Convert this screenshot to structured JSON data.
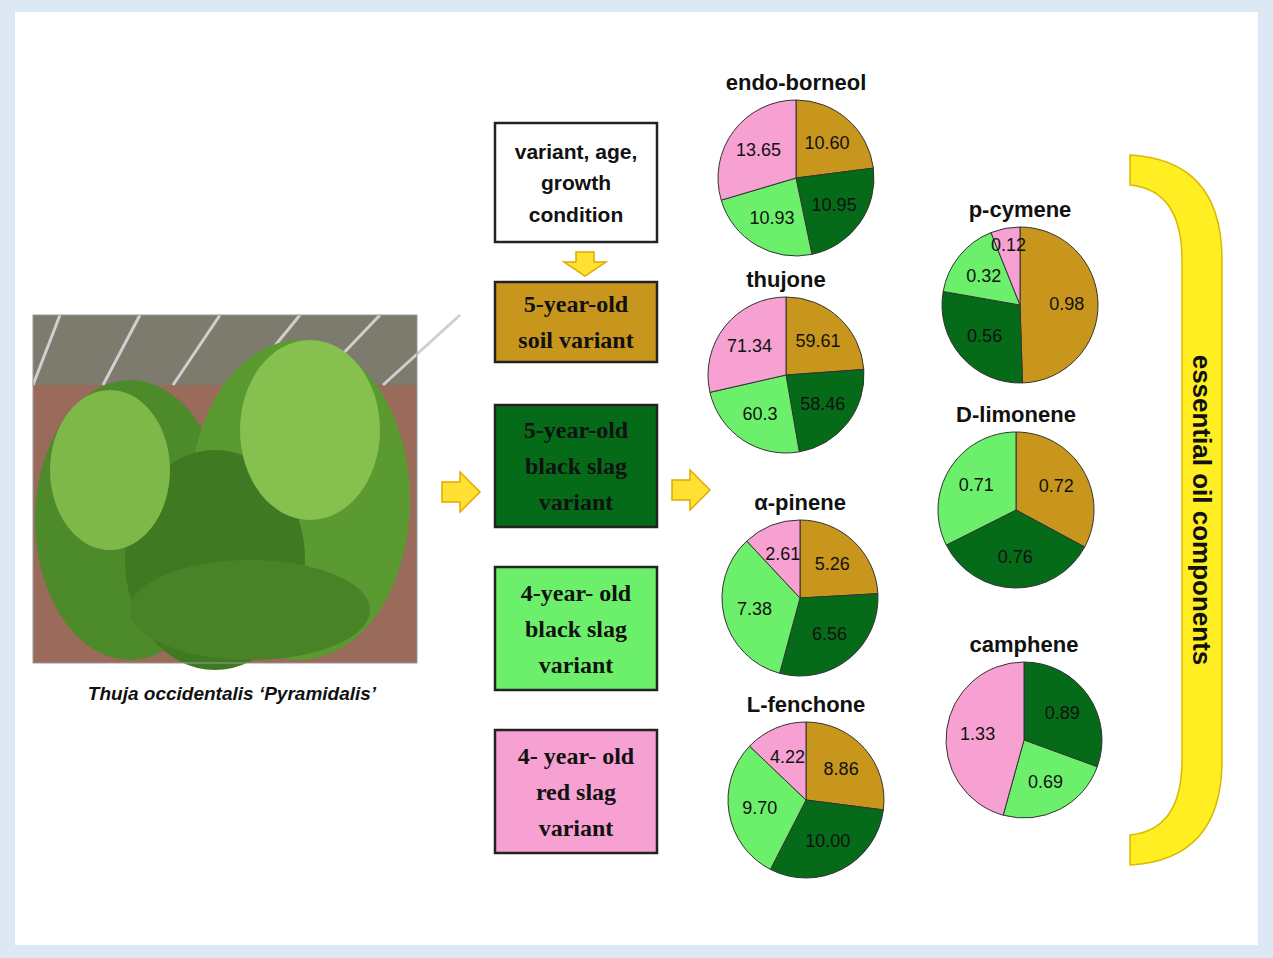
{
  "header_box": "variant, age, growth condition",
  "photo_caption": "Thuja occidentalis ‘Pyramidalis’",
  "side_label": "essential oil components",
  "variants": [
    {
      "name": "5-year-old soil variant",
      "color": "#c8961c"
    },
    {
      "name": "5-year-old black slag variant",
      "color": "#056b18"
    },
    {
      "name": "4-year- old black slag variant",
      "color": "#6cf06c"
    },
    {
      "name": "4- year- old red slag variant",
      "color": "#f7a0d2"
    }
  ],
  "chart_data": [
    {
      "type": "pie",
      "title": "endo-borneol",
      "categories": [
        "5-year-old soil variant",
        "5-year-old black slag variant",
        "4-year- old black slag variant",
        "4- year- old red slag variant"
      ],
      "values": [
        10.6,
        10.95,
        10.93,
        13.65
      ],
      "value_labels": [
        "10.60",
        "10.95",
        "10.93",
        "13.65"
      ],
      "colors": [
        "#c8961c",
        "#056b18",
        "#6cf06c",
        "#f7a0d2"
      ],
      "data_labels": true
    },
    {
      "type": "pie",
      "title": "thujone",
      "categories": [
        "5-year-old soil variant",
        "5-year-old black slag variant",
        "4-year- old black slag variant",
        "4- year- old red slag variant"
      ],
      "values": [
        59.61,
        58.46,
        60.3,
        71.34
      ],
      "value_labels": [
        "59.61",
        "58.46",
        "60.3",
        "71.34"
      ],
      "colors": [
        "#c8961c",
        "#056b18",
        "#6cf06c",
        "#f7a0d2"
      ],
      "data_labels": true
    },
    {
      "type": "pie",
      "title": "α-pinene",
      "categories": [
        "5-year-old soil variant",
        "5-year-old black slag variant",
        "4-year- old black slag variant",
        "4- year- old red slag variant"
      ],
      "values": [
        5.26,
        6.56,
        7.38,
        2.61
      ],
      "value_labels": [
        "5.26",
        "6.56",
        "7.38",
        "2.61"
      ],
      "colors": [
        "#c8961c",
        "#056b18",
        "#6cf06c",
        "#f7a0d2"
      ],
      "data_labels": true
    },
    {
      "type": "pie",
      "title": "L-fenchone",
      "categories": [
        "5-year-old soil variant",
        "5-year-old black slag variant",
        "4-year- old black slag variant",
        "4- year- old red slag variant"
      ],
      "values": [
        8.86,
        10.0,
        9.7,
        4.22
      ],
      "value_labels": [
        "8.86",
        "10.00",
        "9.70",
        "4.22"
      ],
      "colors": [
        "#c8961c",
        "#056b18",
        "#6cf06c",
        "#f7a0d2"
      ],
      "data_labels": true
    },
    {
      "type": "pie",
      "title": "p-cymene",
      "categories": [
        "5-year-old soil variant",
        "5-year-old black slag variant",
        "4-year- old black slag variant",
        "4- year- old red slag variant"
      ],
      "values": [
        0.98,
        0.56,
        0.32,
        0.12
      ],
      "value_labels": [
        "0.98",
        "0.56",
        "0.32",
        "0.12"
      ],
      "colors": [
        "#c8961c",
        "#056b18",
        "#6cf06c",
        "#f7a0d2"
      ],
      "data_labels": true
    },
    {
      "type": "pie",
      "title": "D-limonene",
      "categories": [
        "5-year-old soil variant",
        "5-year-old black slag variant",
        "4-year- old black slag variant"
      ],
      "values": [
        0.72,
        0.76,
        0.71
      ],
      "value_labels": [
        "0.72",
        "0.76",
        "0.71"
      ],
      "colors": [
        "#c8961c",
        "#056b18",
        "#6cf06c"
      ],
      "data_labels": true
    },
    {
      "type": "pie",
      "title": "camphene",
      "categories": [
        "5-year-old black slag variant",
        "4-year- old black slag variant",
        "4- year- old red slag variant"
      ],
      "values": [
        0.89,
        0.69,
        1.33
      ],
      "value_labels": [
        "0.89",
        "0.69",
        "1.33"
      ],
      "colors": [
        "#056b18",
        "#6cf06c",
        "#f7a0d2"
      ],
      "data_labels": true
    }
  ]
}
